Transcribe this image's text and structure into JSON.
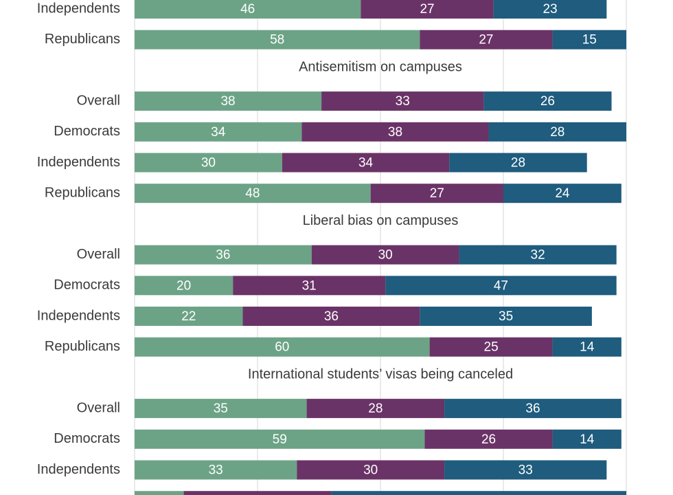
{
  "chart_data": {
    "type": "bar",
    "orientation": "horizontal",
    "stacked": true,
    "grid": true,
    "xlim": [
      0,
      100
    ],
    "colors": [
      "#6ca386",
      "#6a3367",
      "#1f5c7e"
    ],
    "groups": [
      {
        "title": "",
        "rows": [
          {
            "label": "Independents",
            "values": [
              46,
              27,
              23
            ]
          },
          {
            "label": "Republicans",
            "values": [
              58,
              27,
              15
            ]
          }
        ]
      },
      {
        "title": "Antisemitism on campuses",
        "rows": [
          {
            "label": "Overall",
            "values": [
              38,
              33,
              26
            ]
          },
          {
            "label": "Democrats",
            "values": [
              34,
              38,
              28
            ]
          },
          {
            "label": "Independents",
            "values": [
              30,
              34,
              28
            ]
          },
          {
            "label": "Republicans",
            "values": [
              48,
              27,
              24
            ]
          }
        ]
      },
      {
        "title": "Liberal bias on campuses",
        "rows": [
          {
            "label": "Overall",
            "values": [
              36,
              30,
              32
            ]
          },
          {
            "label": "Democrats",
            "values": [
              20,
              31,
              47
            ]
          },
          {
            "label": "Independents",
            "values": [
              22,
              36,
              35
            ]
          },
          {
            "label": "Republicans",
            "values": [
              60,
              25,
              14
            ]
          }
        ]
      },
      {
        "title": "International students’ visas being canceled",
        "rows": [
          {
            "label": "Overall",
            "values": [
              35,
              28,
              36
            ]
          },
          {
            "label": "Democrats",
            "values": [
              59,
              26,
              14
            ]
          },
          {
            "label": "Independents",
            "values": [
              33,
              30,
              33
            ]
          },
          {
            "label": "",
            "values": [
              10,
              30,
              60
            ],
            "show_labels": false
          }
        ]
      }
    ]
  }
}
